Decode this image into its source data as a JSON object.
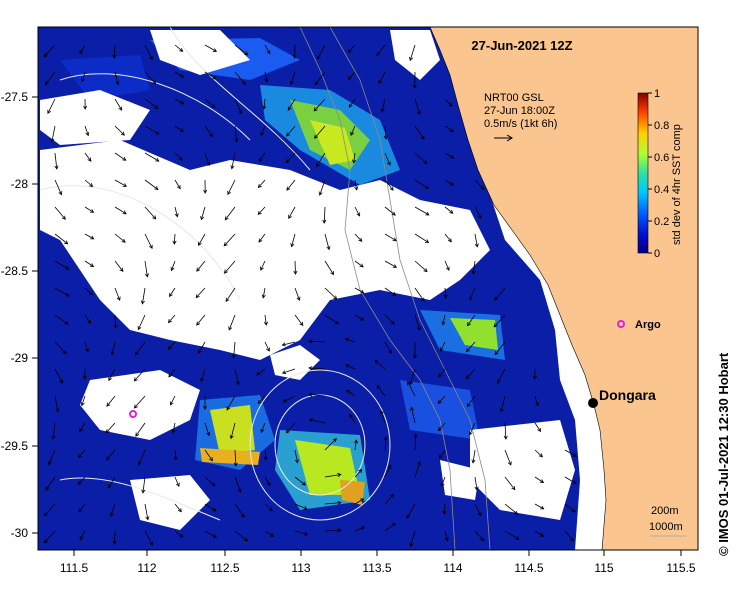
{
  "map": {
    "title": "27-Jun-2021 12Z",
    "current_info": {
      "line1": "NRT00 GSL",
      "line2": "27-Jun 18:00Z",
      "line3": "0.5m/s (1kt 6h)"
    },
    "colorbar": {
      "label": "std dev of 4hr SST comp",
      "ticks": [
        "0",
        "0.2",
        "0.4",
        "0.6",
        "0.8",
        "1"
      ],
      "range": [
        0,
        1
      ],
      "colors": [
        "#00007f",
        "#0030ff",
        "#00c8ff",
        "#40ff90",
        "#d8ff20",
        "#ffb000",
        "#ff2000",
        "#800000"
      ]
    },
    "places": {
      "dongara": "Dongara",
      "argo": "Argo"
    },
    "bathymetry_legend": {
      "line1": "200m",
      "line2": "1000m"
    },
    "credit": "© IMOS 01-Jul-2021 12:30 Hobart",
    "x_axis": {
      "ticks": [
        "111.5",
        "112",
        "112.5",
        "113",
        "113.5",
        "114",
        "114.5",
        "115",
        "115.5"
      ],
      "range": [
        111.3,
        115.5
      ]
    },
    "y_axis": {
      "ticks": [
        "-27.5",
        "-28",
        "-28.5",
        "-29",
        "-29.5",
        "-30"
      ],
      "range": [
        -30.08,
        -27.06
      ]
    },
    "colors": {
      "land": "#fbc590",
      "no_data": "#ffffff",
      "dongara_marker": "#000000",
      "argo_marker": "#e020e0"
    }
  }
}
